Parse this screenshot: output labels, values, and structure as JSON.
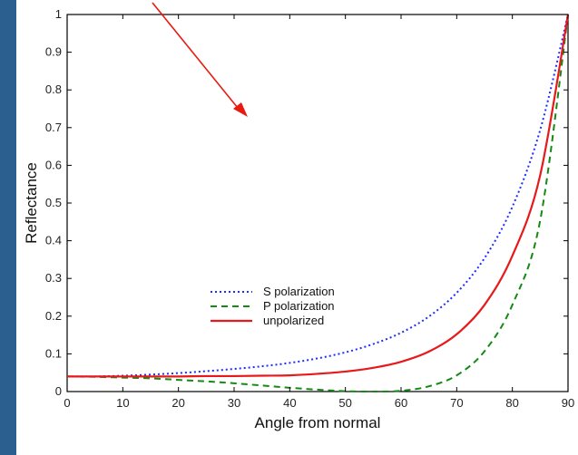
{
  "colors": {
    "background": "#2a5f8f",
    "panel": "#ffffff",
    "s_polarization": "#1f2bff",
    "p_polarization": "#138a13",
    "unpolarized": "#e8191b",
    "arrow": "#e8190f"
  },
  "chart_data": {
    "type": "line",
    "xlabel": "Angle from normal",
    "ylabel": "Reflectance",
    "xlim": [
      0,
      90
    ],
    "ylim": [
      0,
      1
    ],
    "xticks": [
      "0",
      "10",
      "20",
      "30",
      "40",
      "50",
      "60",
      "70",
      "80",
      "90"
    ],
    "yticks": [
      "0",
      "0.1",
      "0.2",
      "0.3",
      "0.4",
      "0.5",
      "0.6",
      "0.7",
      "0.8",
      "0.9",
      "1"
    ],
    "grid": false,
    "legend_position": "lower-left",
    "x": [
      0,
      5,
      10,
      15,
      20,
      25,
      30,
      35,
      40,
      45,
      50,
      55,
      60,
      65,
      70,
      75,
      80,
      85,
      90
    ],
    "series": [
      {
        "name": "S polarization",
        "style": "dotted",
        "color": "#1f2bff",
        "values": [
          0.04,
          0.04,
          0.042,
          0.045,
          0.049,
          0.054,
          0.06,
          0.067,
          0.076,
          0.088,
          0.104,
          0.126,
          0.156,
          0.199,
          0.262,
          0.354,
          0.49,
          0.694,
          1.0
        ]
      },
      {
        "name": "P polarization",
        "style": "dashed",
        "color": "#138a13",
        "values": [
          0.04,
          0.039,
          0.037,
          0.035,
          0.031,
          0.027,
          0.022,
          0.016,
          0.01,
          0.005,
          0.001,
          0.0,
          0.002,
          0.014,
          0.043,
          0.107,
          0.23,
          0.454,
          1.0
        ]
      },
      {
        "name": "unpolarized",
        "style": "solid",
        "color": "#e8191b",
        "values": [
          0.04,
          0.04,
          0.04,
          0.04,
          0.04,
          0.041,
          0.041,
          0.042,
          0.043,
          0.047,
          0.053,
          0.063,
          0.079,
          0.106,
          0.152,
          0.23,
          0.36,
          0.574,
          1.0
        ]
      }
    ],
    "annotations": [
      {
        "type": "arrow",
        "color": "#e8190f",
        "label": ""
      }
    ]
  }
}
